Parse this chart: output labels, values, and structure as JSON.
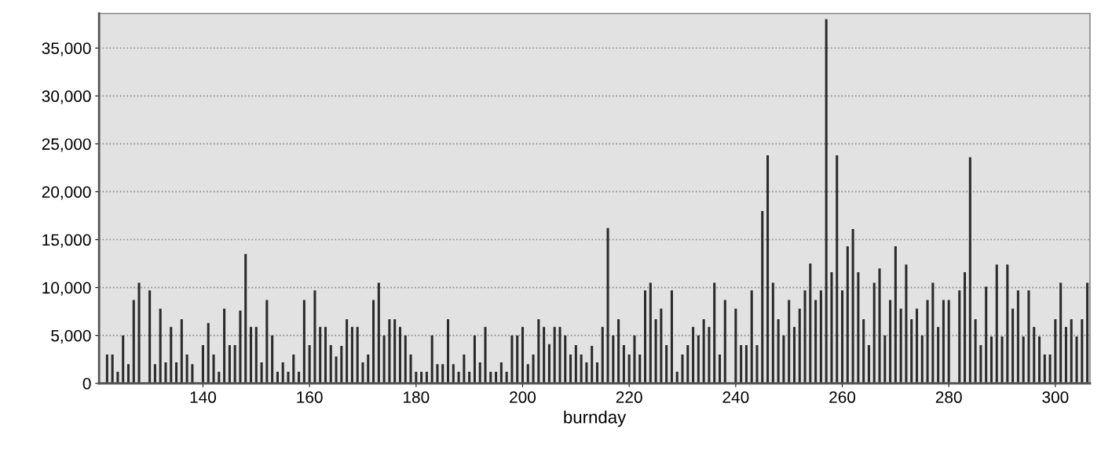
{
  "chart_data": {
    "type": "bar",
    "xlabel": "burnday",
    "x": [
      122,
      123,
      124,
      125,
      126,
      127,
      128,
      130,
      131,
      132,
      133,
      134,
      135,
      136,
      137,
      138,
      140,
      141,
      142,
      143,
      144,
      145,
      146,
      147,
      148,
      149,
      150,
      151,
      152,
      153,
      154,
      155,
      156,
      157,
      158,
      159,
      160,
      161,
      162,
      163,
      164,
      165,
      166,
      167,
      168,
      169,
      170,
      171,
      172,
      173,
      174,
      175,
      176,
      177,
      178,
      179,
      180,
      181,
      182,
      183,
      184,
      185,
      186,
      187,
      188,
      189,
      190,
      191,
      192,
      193,
      194,
      195,
      196,
      197,
      198,
      199,
      200,
      201,
      202,
      203,
      204,
      205,
      206,
      207,
      208,
      209,
      210,
      211,
      212,
      213,
      214,
      215,
      216,
      217,
      218,
      219,
      220,
      221,
      222,
      223,
      224,
      225,
      226,
      227,
      228,
      229,
      230,
      231,
      232,
      233,
      234,
      235,
      236,
      237,
      238,
      240,
      241,
      242,
      243,
      244,
      245,
      246,
      247,
      248,
      249,
      250,
      251,
      252,
      253,
      254,
      255,
      256,
      257,
      258,
      259,
      260,
      261,
      262,
      263,
      264,
      265,
      266,
      267,
      268,
      269,
      270,
      271,
      272,
      273,
      274,
      275,
      276,
      277,
      278,
      279,
      280,
      282,
      283,
      284,
      285,
      286,
      287,
      288,
      289,
      290,
      291,
      292,
      293,
      294,
      295,
      296,
      297,
      298,
      299,
      300,
      301,
      302,
      303,
      304,
      305,
      306
    ],
    "series": [
      {
        "color": "#2b2b2b",
        "values": [
          3000,
          3000,
          1200,
          5000,
          2000,
          8700,
          10500,
          9700,
          2000,
          7800,
          2200,
          5900,
          2200,
          6700,
          3000,
          2000,
          4000,
          6300,
          3000,
          1200,
          7800,
          4000,
          4000,
          7600,
          13500,
          5900,
          5900,
          2200,
          8700,
          5000,
          1200,
          2200,
          1200,
          3000,
          1200,
          8700,
          4000,
          9700,
          5900,
          5900,
          4000,
          2800,
          3900,
          6700,
          5900,
          5900,
          2200,
          3000,
          8700,
          10500,
          5000,
          6700,
          6700,
          5900,
          5000,
          3000,
          1200,
          1200,
          1200,
          5000,
          2000,
          2000,
          6700,
          2000,
          1200,
          3000,
          1200,
          5000,
          2200,
          5900,
          1200,
          1200,
          2200,
          1200,
          5000,
          5000,
          5900,
          2000,
          3000,
          6700,
          5900,
          4100,
          5900,
          5900,
          5000,
          3000,
          4000,
          3000,
          2200,
          3900,
          2200,
          5900,
          16200,
          5000,
          6700,
          4000,
          3000,
          5000,
          3000,
          9700,
          10500,
          6700,
          7800,
          4000,
          9700,
          1200,
          3000,
          4000,
          5900,
          5000,
          6700,
          5900,
          10500,
          3000,
          8700,
          7800,
          4000,
          4000,
          9700,
          4000,
          18000,
          23800,
          10500,
          6700,
          5000,
          8700,
          5900,
          7800,
          9700,
          12500,
          8700,
          9700,
          38000,
          11600,
          23800,
          9700,
          14300,
          16100,
          11600,
          6700,
          4000,
          10500,
          12000,
          5000,
          8700,
          14300,
          7800,
          12400,
          6700,
          7800,
          5000,
          8700,
          10500,
          5900,
          8700,
          8700,
          9700,
          11600,
          23600,
          6700,
          4000,
          10100,
          4900,
          12400,
          4900,
          12400,
          7800,
          9700,
          4900,
          9700,
          5900,
          4900,
          3000,
          3000,
          6700,
          10500,
          5900,
          6700,
          4900,
          6700,
          10500
        ]
      }
    ],
    "xlim": [
      120.5,
      306.5
    ],
    "xticks": [
      140,
      160,
      180,
      200,
      220,
      240,
      260,
      280,
      300
    ],
    "ylim": [
      0,
      38600
    ],
    "yticks": [
      0,
      {
        "value": 5000,
        "label": "5,000"
      },
      {
        "value": 10000,
        "label": "10,000"
      },
      {
        "value": 15000,
        "label": "15,000"
      },
      {
        "value": 20000,
        "label": "20,000"
      },
      {
        "value": 25000,
        "label": "25,000"
      },
      {
        "value": 30000,
        "label": "30,000"
      },
      {
        "value": 35000,
        "label": "35,000"
      }
    ],
    "grid": "y"
  }
}
